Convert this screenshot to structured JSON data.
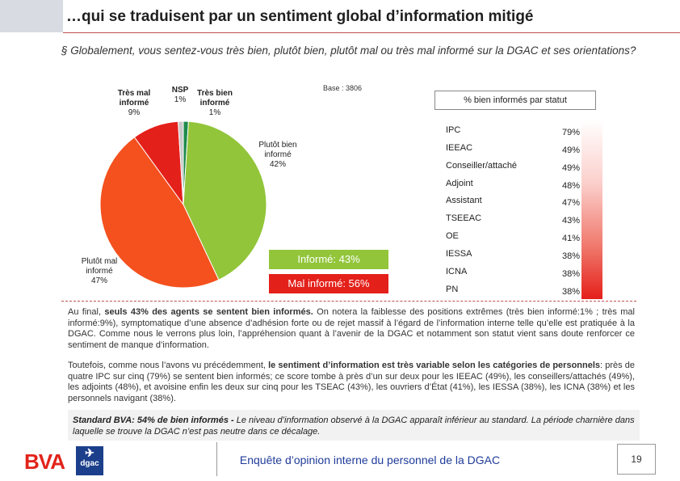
{
  "slide": {
    "title": "…qui se traduisent par un sentiment global d’information mitigé",
    "question": "§ Globalement, vous sentez-vous très bien, plutôt bien, plutôt mal ou très mal informé sur la DGAC et ses orientations?",
    "base": "Base : 3806"
  },
  "chart_data": {
    "type": "pie",
    "title": "",
    "slices": [
      {
        "label": "Très bien informé",
        "value": 1,
        "display": "1%",
        "color": "#1f8a4c"
      },
      {
        "label": "Plutôt bien informé",
        "value": 42,
        "display": "42%",
        "color": "#92c53a"
      },
      {
        "label": "Plutôt mal informé",
        "value": 47,
        "display": "47%",
        "color": "#f4511e"
      },
      {
        "label": "Très mal informé",
        "value": 9,
        "display": "9%",
        "color": "#e4201a"
      },
      {
        "label": "NSP",
        "value": 1,
        "display": "1%",
        "color": "#c8c8c8"
      }
    ]
  },
  "pie_labels": {
    "tres_mal": {
      "line1": "Très mal",
      "line2": "informé",
      "pct": "9%"
    },
    "nsp": {
      "line1": "NSP",
      "pct": "1%"
    },
    "tres_bien": {
      "line1": "Très bien",
      "line2": "informé",
      "pct": "1%"
    },
    "plutot_bien": {
      "line1": "Plutôt bien",
      "line2": "informé",
      "pct": "42%"
    },
    "plutot_mal": {
      "line1": "Plutôt mal",
      "line2": "informé",
      "pct": "47%"
    }
  },
  "summary": {
    "informe": "Informé: 43%",
    "mal_informe": "Mal informé: 56%"
  },
  "status": {
    "header": "% bien informés par statut",
    "rows": [
      {
        "label": "IPC",
        "pct": "79%"
      },
      {
        "label": "IEEAC",
        "pct": "49%"
      },
      {
        "label": "Conseiller/attaché",
        "pct": "49%"
      },
      {
        "label": "Adjoint",
        "pct": "48%"
      },
      {
        "label": "Assistant",
        "pct": "47%"
      },
      {
        "label": "TSEEAC",
        "pct": "43%"
      },
      {
        "label": "OE",
        "pct": "41%"
      },
      {
        "label": "IESSA",
        "pct": "38%"
      },
      {
        "label": "ICNA",
        "pct": "38%"
      },
      {
        "label": "PN",
        "pct": "38%"
      }
    ]
  },
  "text": {
    "p1_a": "Au final, ",
    "p1_b": "seuls 43% des agents se sentent bien informés.",
    "p1_c": " On notera la faiblesse des positions extrêmes (très bien informé:1% ; très mal informé:9%), symptomatique d’une absence d’adhésion forte ou de rejet massif à l’égard de l’information interne telle qu’elle est pratiquée à la DGAC. Comme nous le verrons plus loin, l’appréhension quant à l’avenir de la DGAC et notamment son statut vient sans doute renforcer ce sentiment de manque d’information.",
    "p2_a": "Toutefois, comme nous l’avons vu précédemment, ",
    "p2_b": "le sentiment d’information est très variable selon les catégories de personnels",
    "p2_c": ": près de quatre IPC sur cinq (79%) se sentent bien informés; ce score tombe à près d’un sur deux pour les IEEAC (49%), les conseillers/attachés (49%), les adjoints (48%), et avoisine enfin les deux sur cinq pour les TSEAC (43%), les ouvriers d’État (41%), les IESSA (38%), les ICNA (38%) et les personnels navigant (38%).",
    "std_a": "Standard BVA: 54% de bien informés - ",
    "std_b": " Le niveau d’information observé à la DGAC apparaît inférieur au standard. La période charnière dans laquelle se trouve la DGAC n’est pas neutre dans ce décalage."
  },
  "footer": {
    "text": "Enquête d’opinion interne du personnel de la DGAC",
    "page": "19",
    "bva_logo": "BVA",
    "dgac_logo": "dgac"
  }
}
